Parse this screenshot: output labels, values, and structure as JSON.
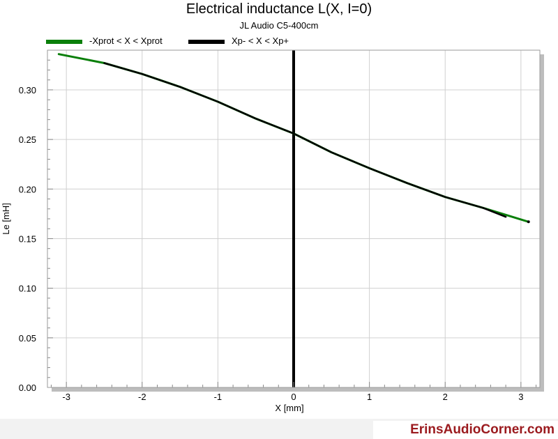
{
  "chart_data": {
    "type": "line",
    "title": "Electrical inductance L(X, I=0)",
    "subtitle": "JL Audio C5-400cm",
    "xlabel": "X [mm]",
    "ylabel": "Le [mH]",
    "xlim": [
      -3.25,
      3.25
    ],
    "ylim": [
      0,
      0.34
    ],
    "xticks": [
      -3,
      -2,
      -1,
      0,
      1,
      2,
      3
    ],
    "xtick_labels": [
      "-3",
      "-2",
      "-1",
      "0",
      "1",
      "2",
      "3"
    ],
    "yticks": [
      0,
      0.05,
      0.1,
      0.15,
      0.2,
      0.25,
      0.3
    ],
    "ytick_labels": [
      "0.00",
      "0.05",
      "0.10",
      "0.15",
      "0.20",
      "0.25",
      "0.30"
    ],
    "grid": true,
    "legend_position": "top-left",
    "vertical_line": {
      "x": 0,
      "color": "#000000"
    },
    "series": [
      {
        "name": "-Xprot < X < Xprot",
        "color": "#0a7f0a",
        "x": [
          -3.1,
          -2.5,
          -2.0,
          -1.5,
          -1.0,
          -0.5,
          0.0,
          0.5,
          1.0,
          1.5,
          2.0,
          2.5,
          3.1
        ],
        "y": [
          0.336,
          0.327,
          0.316,
          0.303,
          0.288,
          0.271,
          0.256,
          0.237,
          0.221,
          0.206,
          0.192,
          0.181,
          0.167
        ]
      },
      {
        "name": "Xp- < X < Xp+",
        "color": "#000000",
        "x": [
          -2.5,
          -2.0,
          -1.5,
          -1.0,
          -0.5,
          0.0,
          0.5,
          1.0,
          1.5,
          2.0,
          2.5,
          2.8
        ],
        "y": [
          0.327,
          0.316,
          0.303,
          0.288,
          0.271,
          0.256,
          0.237,
          0.221,
          0.206,
          0.192,
          0.181,
          0.172
        ]
      }
    ]
  },
  "footer": {
    "brand": "ErinsAudioCorner.com"
  }
}
